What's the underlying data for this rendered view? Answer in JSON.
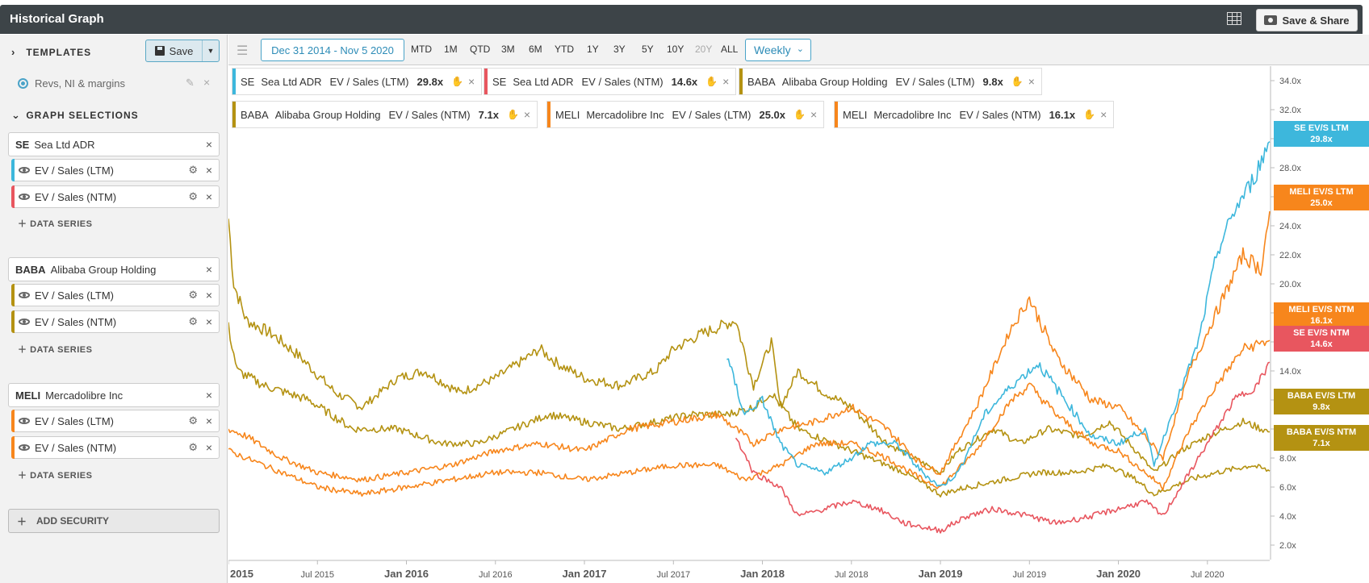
{
  "app": {
    "title": "Historical Graph",
    "share_label": "Save & Share"
  },
  "sidebar": {
    "templates_label": "TEMPLATES",
    "save_label": "Save",
    "template_item": "Revs, NI & margins",
    "graph_selections_label": "GRAPH SELECTIONS",
    "add_series_label": "DATA SERIES",
    "add_security_label": "ADD SECURITY",
    "securities": [
      {
        "ticker": "SE",
        "name": "Sea Ltd ADR",
        "series": [
          {
            "label": "EV / Sales (LTM)",
            "color": "#3db7dc"
          },
          {
            "label": "EV / Sales (NTM)",
            "color": "#e8565f"
          }
        ]
      },
      {
        "ticker": "BABA",
        "name": "Alibaba Group Holding",
        "series": [
          {
            "label": "EV / Sales (LTM)",
            "color": "#b49212"
          },
          {
            "label": "EV / Sales (NTM)",
            "color": "#b49212"
          }
        ]
      },
      {
        "ticker": "MELI",
        "name": "Mercadolibre Inc",
        "series": [
          {
            "label": "EV / Sales (LTM)",
            "color": "#f7861c"
          },
          {
            "label": "EV / Sales (NTM)",
            "color": "#f7861c"
          }
        ]
      }
    ]
  },
  "toolbar": {
    "date_range": "Dec 31 2014 - Nov 5 2020",
    "periods": [
      "MTD",
      "1M",
      "QTD",
      "3M",
      "6M",
      "YTD",
      "1Y",
      "3Y",
      "5Y",
      "10Y",
      "20Y",
      "ALL"
    ],
    "disabled_periods": [
      "20Y"
    ],
    "frequency": "Weekly"
  },
  "legend": [
    {
      "ticker": "SE",
      "name": "Sea Ltd ADR",
      "metric": "EV / Sales (LTM)",
      "value": "29.8x",
      "color": "#3db7dc"
    },
    {
      "ticker": "SE",
      "name": "Sea Ltd ADR",
      "metric": "EV / Sales (NTM)",
      "value": "14.6x",
      "color": "#e8565f"
    },
    {
      "ticker": "BABA",
      "name": "Alibaba Group Holding",
      "metric": "EV / Sales (LTM)",
      "value": "9.8x",
      "color": "#b49212"
    },
    {
      "ticker": "BABA",
      "name": "Alibaba Group Holding",
      "metric": "EV / Sales (NTM)",
      "value": "7.1x",
      "color": "#b49212"
    },
    {
      "ticker": "MELI",
      "name": "Mercadolibre Inc",
      "metric": "EV / Sales (LTM)",
      "value": "25.0x",
      "color": "#f7861c"
    },
    {
      "ticker": "MELI",
      "name": "Mercadolibre Inc",
      "metric": "EV / Sales (NTM)",
      "value": "16.1x",
      "color": "#f7861c"
    }
  ],
  "end_tags": [
    {
      "l1": "SE EV/S LTM",
      "l2": "29.8x",
      "color": "#3db7dc",
      "value": 29.8
    },
    {
      "l1": "MELI EV/S LTM",
      "l2": "25.0x",
      "color": "#f7861c",
      "value": 25.0
    },
    {
      "l1": "MELI EV/S NTM",
      "l2": "16.1x",
      "color": "#f7861c",
      "value": 16.1
    },
    {
      "l1": "SE EV/S NTM",
      "l2": "14.6x",
      "color": "#e8565f",
      "value": 14.6
    },
    {
      "l1": "BABA EV/S LTM",
      "l2": "9.8x",
      "color": "#b49212",
      "value": 9.8
    },
    {
      "l1": "BABA EV/S NTM",
      "l2": "7.1x",
      "color": "#b49212",
      "value": 7.1
    }
  ],
  "chart_data": {
    "type": "line",
    "ylim": [
      1,
      35
    ],
    "xlim": [
      2015.0,
      2020.85
    ],
    "y_ticks": [
      "2.0x",
      "4.0x",
      "6.0x",
      "8.0x",
      "10.0x",
      "12.0x",
      "14.0x",
      "16.0x",
      "18.0x",
      "20.0x",
      "22.0x",
      "24.0x",
      "26.0x",
      "28.0x",
      "30.0x",
      "32.0x",
      "34.0x"
    ],
    "y_tick_values": [
      2,
      4,
      6,
      8,
      10,
      12,
      14,
      16,
      18,
      20,
      22,
      24,
      26,
      28,
      30,
      32,
      34
    ],
    "x_ticks": [
      {
        "label": "2015",
        "t": 2015.0,
        "major": true
      },
      {
        "label": "Jul 2015",
        "t": 2015.5,
        "major": false
      },
      {
        "label": "Jan 2016",
        "t": 2016.0,
        "major": true
      },
      {
        "label": "Jul 2016",
        "t": 2016.5,
        "major": false
      },
      {
        "label": "Jan 2017",
        "t": 2017.0,
        "major": true
      },
      {
        "label": "Jul 2017",
        "t": 2017.5,
        "major": false
      },
      {
        "label": "Jan 2018",
        "t": 2018.0,
        "major": true
      },
      {
        "label": "Jul 2018",
        "t": 2018.5,
        "major": false
      },
      {
        "label": "Jan 2019",
        "t": 2019.0,
        "major": true
      },
      {
        "label": "Jul 2019",
        "t": 2019.5,
        "major": false
      },
      {
        "label": "Jan 2020",
        "t": 2020.0,
        "major": true
      },
      {
        "label": "Jul 2020",
        "t": 2020.5,
        "major": false
      }
    ],
    "series": [
      {
        "name": "BABA EV / Sales (LTM)",
        "color": "#b49212",
        "points": [
          [
            2015.0,
            24.5
          ],
          [
            2015.03,
            20
          ],
          [
            2015.1,
            17.5
          ],
          [
            2015.25,
            16.5
          ],
          [
            2015.4,
            15
          ],
          [
            2015.6,
            12.5
          ],
          [
            2015.75,
            11.5
          ],
          [
            2015.95,
            13.5
          ],
          [
            2016.1,
            14
          ],
          [
            2016.3,
            12.5
          ],
          [
            2016.5,
            13.5
          ],
          [
            2016.75,
            15.5
          ],
          [
            2016.85,
            14.5
          ],
          [
            2017.0,
            13.5
          ],
          [
            2017.2,
            13
          ],
          [
            2017.4,
            14
          ],
          [
            2017.5,
            15.5
          ],
          [
            2017.65,
            16.5
          ],
          [
            2017.85,
            17.5
          ],
          [
            2017.95,
            13
          ],
          [
            2018.05,
            16
          ],
          [
            2018.1,
            11.5
          ],
          [
            2018.2,
            14
          ],
          [
            2018.35,
            12.5
          ],
          [
            2018.5,
            11.5
          ],
          [
            2018.7,
            9
          ],
          [
            2018.85,
            8
          ],
          [
            2019.0,
            7
          ],
          [
            2019.1,
            8.5
          ],
          [
            2019.3,
            10
          ],
          [
            2019.45,
            9
          ],
          [
            2019.6,
            10
          ],
          [
            2019.8,
            9.5
          ],
          [
            2019.95,
            10.5
          ],
          [
            2020.1,
            8.5
          ],
          [
            2020.2,
            7
          ],
          [
            2020.35,
            8.5
          ],
          [
            2020.5,
            9.5
          ],
          [
            2020.7,
            10.5
          ],
          [
            2020.85,
            9.8
          ]
        ]
      },
      {
        "name": "BABA EV / Sales (NTM)",
        "color": "#b49212",
        "points": [
          [
            2015.0,
            17
          ],
          [
            2015.05,
            14
          ],
          [
            2015.2,
            13
          ],
          [
            2015.45,
            12
          ],
          [
            2015.7,
            10
          ],
          [
            2015.95,
            10
          ],
          [
            2016.2,
            9
          ],
          [
            2016.4,
            9
          ],
          [
            2016.6,
            10
          ],
          [
            2016.8,
            11
          ],
          [
            2017.0,
            10.5
          ],
          [
            2017.2,
            10
          ],
          [
            2017.4,
            10.5
          ],
          [
            2017.6,
            11
          ],
          [
            2017.8,
            11
          ],
          [
            2017.95,
            11.5
          ],
          [
            2018.05,
            12.5
          ],
          [
            2018.2,
            10
          ],
          [
            2018.4,
            9
          ],
          [
            2018.6,
            8
          ],
          [
            2018.8,
            7
          ],
          [
            2019.0,
            5.5
          ],
          [
            2019.15,
            6
          ],
          [
            2019.35,
            6.5
          ],
          [
            2019.55,
            7
          ],
          [
            2019.75,
            7
          ],
          [
            2019.95,
            7.5
          ],
          [
            2020.1,
            6.5
          ],
          [
            2020.2,
            5.5
          ],
          [
            2020.4,
            6.5
          ],
          [
            2020.55,
            7
          ],
          [
            2020.75,
            7.5
          ],
          [
            2020.85,
            7.1
          ]
        ]
      },
      {
        "name": "MELI EV / Sales (LTM)",
        "color": "#f7861c",
        "points": [
          [
            2015.0,
            10
          ],
          [
            2015.1,
            9.5
          ],
          [
            2015.3,
            8
          ],
          [
            2015.5,
            7
          ],
          [
            2015.75,
            6.5
          ],
          [
            2016.0,
            7
          ],
          [
            2016.25,
            7.5
          ],
          [
            2016.5,
            8.5
          ],
          [
            2016.75,
            9
          ],
          [
            2017.0,
            8.5
          ],
          [
            2017.25,
            10
          ],
          [
            2017.5,
            10.5
          ],
          [
            2017.75,
            11
          ],
          [
            2017.95,
            9
          ],
          [
            2018.1,
            10
          ],
          [
            2018.3,
            10.5
          ],
          [
            2018.5,
            11.5
          ],
          [
            2018.7,
            10
          ],
          [
            2018.9,
            7.5
          ],
          [
            2019.0,
            7
          ],
          [
            2019.2,
            11.5
          ],
          [
            2019.4,
            17
          ],
          [
            2019.5,
            19
          ],
          [
            2019.65,
            15
          ],
          [
            2019.85,
            12
          ],
          [
            2020.0,
            11.5
          ],
          [
            2020.15,
            9.5
          ],
          [
            2020.25,
            8
          ],
          [
            2020.4,
            14
          ],
          [
            2020.55,
            18
          ],
          [
            2020.7,
            22
          ],
          [
            2020.8,
            21
          ],
          [
            2020.85,
            25
          ]
        ]
      },
      {
        "name": "MELI EV / Sales (NTM)",
        "color": "#f7861c",
        "points": [
          [
            2015.0,
            8.5
          ],
          [
            2015.1,
            8
          ],
          [
            2015.3,
            7
          ],
          [
            2015.5,
            6
          ],
          [
            2015.75,
            5.5
          ],
          [
            2016.0,
            6
          ],
          [
            2016.25,
            6.5
          ],
          [
            2016.5,
            7
          ],
          [
            2016.75,
            7
          ],
          [
            2017.0,
            6.5
          ],
          [
            2017.25,
            7
          ],
          [
            2017.5,
            7.5
          ],
          [
            2017.75,
            7.5
          ],
          [
            2017.9,
            6.5
          ],
          [
            2018.1,
            7.5
          ],
          [
            2018.3,
            9
          ],
          [
            2018.5,
            9
          ],
          [
            2018.7,
            8
          ],
          [
            2018.9,
            6.5
          ],
          [
            2019.0,
            6
          ],
          [
            2019.2,
            8.5
          ],
          [
            2019.4,
            12
          ],
          [
            2019.5,
            13
          ],
          [
            2019.65,
            11
          ],
          [
            2019.85,
            9
          ],
          [
            2020.0,
            8.5
          ],
          [
            2020.15,
            7
          ],
          [
            2020.25,
            6
          ],
          [
            2020.4,
            10
          ],
          [
            2020.55,
            13
          ],
          [
            2020.7,
            15.5
          ],
          [
            2020.85,
            16.1
          ]
        ]
      },
      {
        "name": "SE EV / Sales (LTM)",
        "color": "#3db7dc",
        "points": [
          [
            2017.8,
            15
          ],
          [
            2017.9,
            11
          ],
          [
            2018.0,
            12
          ],
          [
            2018.1,
            9
          ],
          [
            2018.2,
            7.5
          ],
          [
            2018.35,
            7
          ],
          [
            2018.5,
            8
          ],
          [
            2018.6,
            9
          ],
          [
            2018.75,
            9
          ],
          [
            2018.9,
            7
          ],
          [
            2019.0,
            6
          ],
          [
            2019.1,
            7
          ],
          [
            2019.25,
            11
          ],
          [
            2019.4,
            13
          ],
          [
            2019.55,
            14.5
          ],
          [
            2019.7,
            12
          ],
          [
            2019.85,
            9.5
          ],
          [
            2020.0,
            9
          ],
          [
            2020.15,
            10
          ],
          [
            2020.2,
            7.5
          ],
          [
            2020.3,
            11
          ],
          [
            2020.45,
            16
          ],
          [
            2020.55,
            22
          ],
          [
            2020.65,
            25
          ],
          [
            2020.75,
            27
          ],
          [
            2020.85,
            29.8
          ]
        ]
      },
      {
        "name": "SE EV / Sales (NTM)",
        "color": "#e8565f",
        "points": [
          [
            2017.85,
            9.5
          ],
          [
            2017.95,
            7
          ],
          [
            2018.1,
            6
          ],
          [
            2018.2,
            4
          ],
          [
            2018.35,
            4.5
          ],
          [
            2018.5,
            5
          ],
          [
            2018.65,
            4.5
          ],
          [
            2018.8,
            3.5
          ],
          [
            2019.0,
            3
          ],
          [
            2019.15,
            4
          ],
          [
            2019.3,
            4.5
          ],
          [
            2019.5,
            4
          ],
          [
            2019.65,
            3.5
          ],
          [
            2019.85,
            4
          ],
          [
            2020.0,
            4.5
          ],
          [
            2020.15,
            5
          ],
          [
            2020.25,
            4
          ],
          [
            2020.35,
            6
          ],
          [
            2020.5,
            9
          ],
          [
            2020.65,
            12
          ],
          [
            2020.78,
            13
          ],
          [
            2020.85,
            14.6
          ]
        ]
      }
    ]
  }
}
